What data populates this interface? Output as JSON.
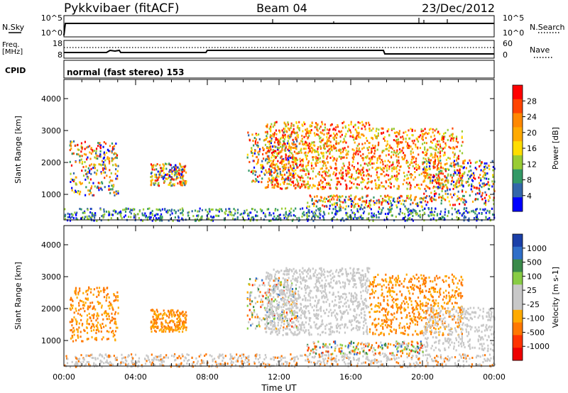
{
  "header": {
    "station": "Pykkvibaer (fitACF)",
    "beam": "Beam 04",
    "date": "23/Dec/2012"
  },
  "strip_labels": {
    "nsky": "N.Sky",
    "nsearch": "N.Search",
    "nsky_top_tick": "10^5",
    "nsky_bottom_tick": "10^0",
    "freq": "Freq.",
    "freq_unit": "[MHz]",
    "freq_top_tick": "18",
    "freq_bottom_tick": "8",
    "nave": "Nave",
    "nave_top_tick": "60",
    "nave_bottom_tick": "0",
    "cpid": "CPID",
    "cpid_text": "normal (fast stereo) 153"
  },
  "chart_data": [
    {
      "type": "heatmap",
      "ylabel": "Slant Range [km]",
      "ylim": [
        200,
        4600
      ],
      "yticks": [
        "1000",
        "2000",
        "3000",
        "4000"
      ],
      "colorbar_label": "Power [dB]",
      "colorbar_ticks": [
        "28",
        "24",
        "20",
        "16",
        "12",
        "8",
        "4"
      ],
      "colorbar_colors": [
        "#ff0000",
        "#ff4400",
        "#ff8800",
        "#ffaa00",
        "#ffdd00",
        "#99cc33",
        "#339966",
        "#3366aa",
        "#0000ff"
      ]
    },
    {
      "type": "heatmap",
      "ylabel": "Slant Range [km]",
      "ylim": [
        200,
        4600
      ],
      "yticks": [
        "1000",
        "2000",
        "3000",
        "4000"
      ],
      "colorbar_label": "Velocity [m s-1]",
      "colorbar_ticks": [
        "1000",
        "500",
        "100",
        "25",
        "-25",
        "-100",
        "-500",
        "-1000"
      ],
      "colorbar_colors": [
        "#1a3fa8",
        "#2f6ec8",
        "#3a8a4a",
        "#88cc44",
        "#c8c8c8",
        "#c8c8c8",
        "#ffaa00",
        "#ff7700",
        "#ff3300",
        "#ee0000"
      ]
    }
  ],
  "time_axis": {
    "label": "Time UT",
    "ticks": [
      "00:00",
      "04:00",
      "08:00",
      "12:00",
      "16:00",
      "20:00",
      "00:00"
    ]
  }
}
